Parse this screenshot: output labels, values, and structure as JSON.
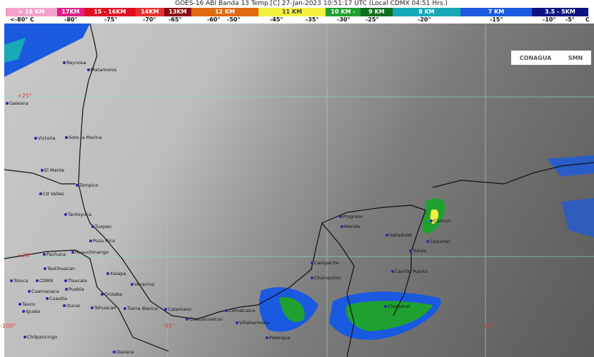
{
  "title": "GOES-16 ABI Banda 13 Temp.[C] 27-Jan-2023 10:51:17 UTC (Local CDMX  04:51 Hrs.)",
  "legend": [
    {
      "label": "> 18 KM",
      "color": "#f2a0c8"
    },
    {
      "label": "17KM",
      "color": "#e0208a"
    },
    {
      "label": "15 - 16KM",
      "color": "#e01020"
    },
    {
      "label": "14KM",
      "color": "#e83030"
    },
    {
      "label": "13KM",
      "color": "#8a0c10"
    },
    {
      "label": "12 KM",
      "color": "#e06a10"
    },
    {
      "label": "11 KM",
      "color": "#f4f040"
    },
    {
      "label": "10 KM -",
      "color": "#20a030"
    },
    {
      "label": "9 KM",
      "color": "#107020"
    },
    {
      "label": "8 KM",
      "color": "#18a8b8"
    },
    {
      "label": "7 KM",
      "color": "#1a5ae0"
    },
    {
      "label": "3.5 - 5KM",
      "color": "#0a1480"
    }
  ],
  "temps": [
    "<-80° C",
    "-80°",
    "-75°",
    "-70°",
    "-65°",
    "-60°",
    "-50°",
    "-45°",
    "-35°",
    "-30°",
    "-25°",
    "-20°",
    "-15°",
    "-10°",
    "-5°",
    "C"
  ],
  "logos": {
    "left": "CONAGUA",
    "right": "SMN"
  },
  "coords": [
    "+25°",
    "+20°",
    "-100°",
    "-95°",
    "-85°"
  ],
  "cities": [
    "Reynosa",
    "Matamoros",
    "Galeana",
    "Victoria",
    "Soto la Marina",
    "El Mante",
    "Tampico",
    "Cd Valles",
    "Tantoyuca",
    "Tuxpan",
    "Poza Rica",
    "Pachuca",
    "Huauchinango",
    "Teotihuacan",
    "Toluca",
    "CDMX",
    "Tlaxcala",
    "Puebla",
    "Cuernavaca",
    "Cuautla",
    "Izucar",
    "Taxco",
    "Iguala",
    "Xalapa",
    "Veracruz",
    "Orizaba",
    "Tehuacan",
    "Tierra Blanca",
    "Catemaco",
    "Coatzacoalcos",
    "Comalcalco",
    "Villahermosa",
    "Palenque",
    "Chilpancingo",
    "Oaxaca",
    "Campeche",
    "Champoton",
    "Progreso",
    "Merida",
    "Valladolid",
    "Cancun",
    "Cozumel",
    "Tulum",
    "Carrillo Puerto",
    "Chetumal"
  ]
}
